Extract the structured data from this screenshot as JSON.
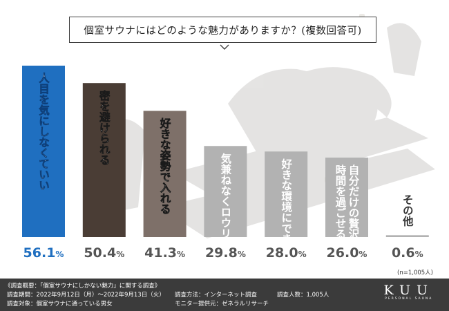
{
  "title": "個室サウナにはどのような魅力がありますか？(複数回答可)",
  "chart_data": {
    "type": "bar",
    "categories": [
      "人目を気にしなくていい",
      "密を避けられる",
      "好きな姿勢で入れる",
      "気兼ねなくロウリュができる",
      "好きな環境にできる",
      "自分だけの贅沢な時間を過ごせる",
      "その他"
    ],
    "values": [
      56.1,
      50.4,
      41.3,
      29.8,
      28.0,
      26.0,
      0.6
    ],
    "value_labels": [
      "56.1%",
      "50.4%",
      "41.3%",
      "29.8%",
      "28.0%",
      "26.0%",
      "0.6%"
    ],
    "label_lines": [
      [
        "人目を気にしなくていい"
      ],
      [
        "密を避けられる"
      ],
      [
        "好きな姿勢で入れる"
      ],
      [
        "気兼ねなくロウリュができる"
      ],
      [
        "好きな環境にできる"
      ],
      [
        "自分だけの贅沢な",
        "時間を過ごせる"
      ],
      [
        "その他"
      ]
    ],
    "colors": [
      "#1f6fc0",
      "#4a3d35",
      "#7e7069",
      "#b2b2b2",
      "#b2b2b2",
      "#b2b2b2",
      "#b2b2b2"
    ],
    "unit": "%",
    "ylim": [
      0,
      56.1
    ],
    "grid": false,
    "legend": "none"
  },
  "sample_note": "(n=1,005人)",
  "footer": {
    "heading": "《調査概要：「個室サウナにしかない魅力」に関する調査》",
    "period": "調査期間：2022年9月12日（月）〜2022年9月13日（火）",
    "target": "調査対象：個室サウナに通っている男女",
    "method": "調査方法：インターネット調査",
    "provider": "モニター提供元：ゼネラルリサーチ",
    "respondents": "調査人数：1,005人"
  },
  "brand": {
    "logo": "KUU",
    "sub": "PERSONAL SAUNA"
  }
}
